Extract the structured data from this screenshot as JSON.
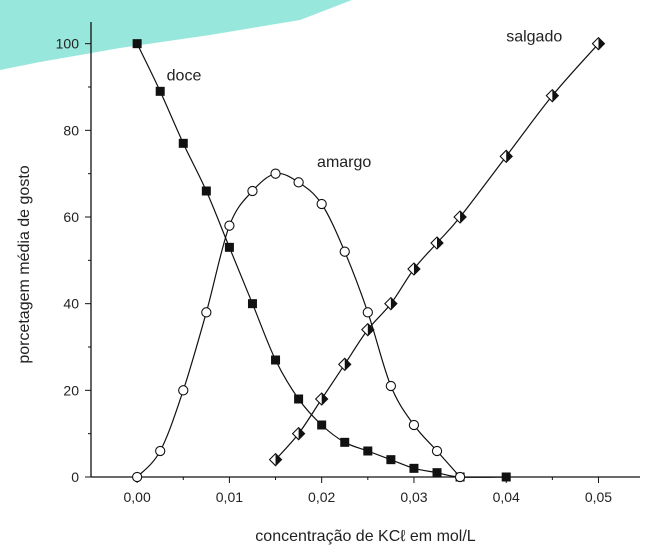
{
  "chart_data": {
    "type": "line",
    "title": "",
    "xlabel": "concentração de KCℓ em mol/L",
    "ylabel": "porcetagem média de gosto",
    "xlim": [
      -0.005,
      0.0545
    ],
    "ylim": [
      0,
      105
    ],
    "xticks": [
      0.0,
      0.01,
      0.02,
      0.03,
      0.04,
      0.05
    ],
    "xtick_labels": [
      "0,00",
      "0,01",
      "0,02",
      "0,03",
      "0,04",
      "0,05"
    ],
    "yticks": [
      0,
      20,
      40,
      60,
      80,
      100
    ],
    "ytick_labels": [
      "0",
      "20",
      "40",
      "60",
      "80",
      "100"
    ],
    "grid": false,
    "legend": "none (curves labeled directly)",
    "series": [
      {
        "name": "doce",
        "marker": "filled-square",
        "x": [
          0.0,
          0.0025,
          0.005,
          0.0075,
          0.01,
          0.0125,
          0.015,
          0.0175,
          0.02,
          0.0225,
          0.025,
          0.0275,
          0.03,
          0.0325,
          0.035,
          0.04
        ],
        "y": [
          100,
          89,
          77,
          66,
          53,
          40,
          27,
          18,
          12,
          8,
          6,
          4,
          2,
          1,
          0,
          0
        ]
      },
      {
        "name": "amargo",
        "marker": "open-circle",
        "x": [
          0.0,
          0.0025,
          0.005,
          0.0075,
          0.01,
          0.0125,
          0.015,
          0.0175,
          0.02,
          0.0225,
          0.025,
          0.0275,
          0.03,
          0.0325,
          0.035
        ],
        "y": [
          0,
          6,
          20,
          38,
          58,
          66,
          70,
          68,
          63,
          52,
          38,
          21,
          12,
          6,
          0
        ]
      },
      {
        "name": "salgado",
        "marker": "half-filled-diamond",
        "x": [
          0.015,
          0.0175,
          0.02,
          0.0225,
          0.025,
          0.0275,
          0.03,
          0.0325,
          0.035,
          0.04,
          0.045,
          0.05
        ],
        "y": [
          4,
          10,
          18,
          26,
          34,
          40,
          48,
          54,
          60,
          74,
          88,
          100
        ]
      }
    ],
    "annotations": [
      {
        "text": "doce",
        "series": "doce"
      },
      {
        "text": "amargo",
        "series": "amargo"
      },
      {
        "text": "salgado",
        "series": "salgado"
      }
    ],
    "colors": {
      "line": "#111111",
      "marker": "#111111",
      "background": "#ffffff",
      "corner_accent": "#7fe0d2"
    }
  }
}
